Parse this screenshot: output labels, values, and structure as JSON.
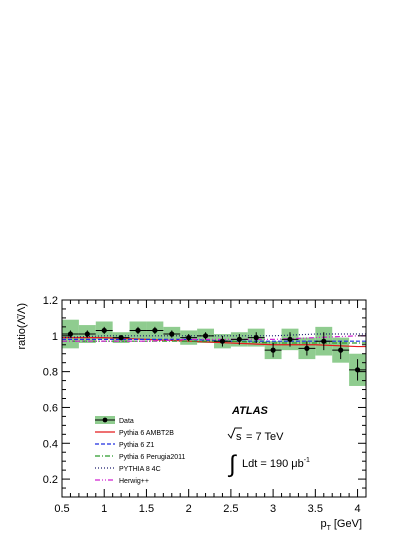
{
  "chart_data": {
    "type": "line",
    "xlabel": "p",
    "xlabel_sub": "T",
    "xlabel_unit": "[GeV]",
    "ylabel": "ratio(Λ̄/Λ)",
    "xlim": [
      0.5,
      4.1
    ],
    "ylim": [
      0.1,
      1.2
    ],
    "xticks": [
      "0.5",
      "1",
      "1.5",
      "2",
      "2.5",
      "3",
      "3.5",
      "4"
    ],
    "yticks": [
      "0.2",
      "0.4",
      "0.6",
      "0.8",
      "1",
      "1.2"
    ],
    "legend_position": "bottom-left",
    "grid": false,
    "annotations": {
      "experiment": "ATLAS",
      "energy_prefix": "s",
      "energy_value": "= 7 TeV",
      "lumi_text": "Ldt = 190 μb",
      "lumi_exp": "-1"
    },
    "series": [
      {
        "name": "Data",
        "style": "points",
        "color": "#000000",
        "band_color": "#8fcc8f",
        "x": [
          0.6,
          0.8,
          1.0,
          1.2,
          1.4,
          1.6,
          1.8,
          2.0,
          2.2,
          2.4,
          2.6,
          2.8,
          3.0,
          3.2,
          3.4,
          3.6,
          3.8,
          4.0
        ],
        "y": [
          1.01,
          1.01,
          1.03,
          0.99,
          1.03,
          1.03,
          1.01,
          0.99,
          1.0,
          0.97,
          0.98,
          0.99,
          0.92,
          0.98,
          0.93,
          0.97,
          0.92,
          0.81
        ],
        "stat": [
          0.02,
          0.02,
          0.02,
          0.01,
          0.02,
          0.02,
          0.02,
          0.02,
          0.02,
          0.03,
          0.03,
          0.03,
          0.04,
          0.04,
          0.04,
          0.05,
          0.05,
          0.06
        ],
        "syst": [
          0.08,
          0.05,
          0.05,
          0.03,
          0.05,
          0.05,
          0.04,
          0.04,
          0.04,
          0.04,
          0.04,
          0.05,
          0.05,
          0.06,
          0.06,
          0.08,
          0.07,
          0.09
        ]
      },
      {
        "name": "Pythia 6 AMBT2B",
        "style": "solid",
        "color": "#e41a1c",
        "x": [
          0.5,
          1.0,
          1.5,
          2.0,
          2.5,
          3.0,
          3.5,
          4.0,
          4.1
        ],
        "y": [
          0.99,
          0.99,
          0.98,
          0.97,
          0.96,
          0.95,
          0.95,
          0.94,
          0.94
        ]
      },
      {
        "name": "Pythia 6 Z1",
        "style": "dashed",
        "color": "#1f2fe0",
        "x": [
          0.5,
          1.0,
          1.5,
          2.0,
          2.5,
          3.0,
          3.5,
          4.0,
          4.1
        ],
        "y": [
          0.98,
          0.98,
          0.98,
          0.98,
          0.97,
          0.97,
          0.97,
          0.97,
          0.97
        ]
      },
      {
        "name": "Pythia 6 Perugia2011",
        "style": "dashdot",
        "color": "#2a9a2a",
        "x": [
          0.5,
          1.0,
          1.5,
          2.0,
          2.5,
          3.0,
          3.5,
          4.0,
          4.1
        ],
        "y": [
          0.97,
          0.97,
          0.97,
          0.97,
          0.97,
          0.96,
          0.96,
          0.96,
          0.96
        ]
      },
      {
        "name": "PYTHIA 8 4C",
        "style": "dotted",
        "color": "#1a1a6a",
        "x": [
          0.5,
          1.0,
          1.5,
          2.0,
          2.5,
          3.0,
          3.5,
          4.0,
          4.1
        ],
        "y": [
          0.99,
          1.0,
          1.0,
          1.0,
          1.0,
          1.0,
          1.01,
          1.01,
          1.01
        ]
      },
      {
        "name": "Herwig++",
        "style": "dashdotdot",
        "color": "#d020d0",
        "x": [
          0.5,
          1.0,
          1.5,
          2.0,
          2.5,
          3.0,
          3.5,
          4.0,
          4.1
        ],
        "y": [
          0.97,
          0.97,
          0.97,
          0.98,
          0.98,
          0.98,
          0.99,
          1.0,
          1.0
        ]
      }
    ]
  }
}
